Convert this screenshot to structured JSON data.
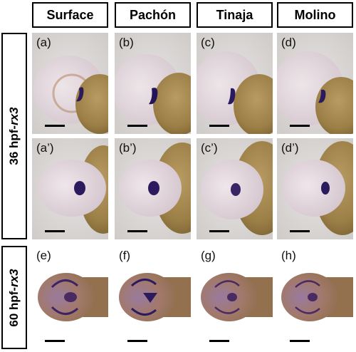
{
  "column_headers": [
    "Surface",
    "Pachón",
    "Tinaja",
    "Molino"
  ],
  "row_headers": [
    {
      "prefix": "36 hpf-",
      "gene": "rx3"
    },
    {
      "prefix": "60 hpf-",
      "gene": "rx3"
    }
  ],
  "panels": {
    "row1": [
      "(a)",
      "(b)",
      "(c)",
      "(d)"
    ],
    "row2": [
      "(a’)",
      "(b’)",
      "(c’)",
      "(d’)"
    ],
    "row3": [
      "(e)",
      "(f)",
      "(g)",
      "(h)"
    ]
  },
  "colors": {
    "background_panel": "#d9d6d4",
    "yolk": "#a68a52",
    "stain": "#2c1a5e",
    "tissue": "#e4d8e0"
  }
}
